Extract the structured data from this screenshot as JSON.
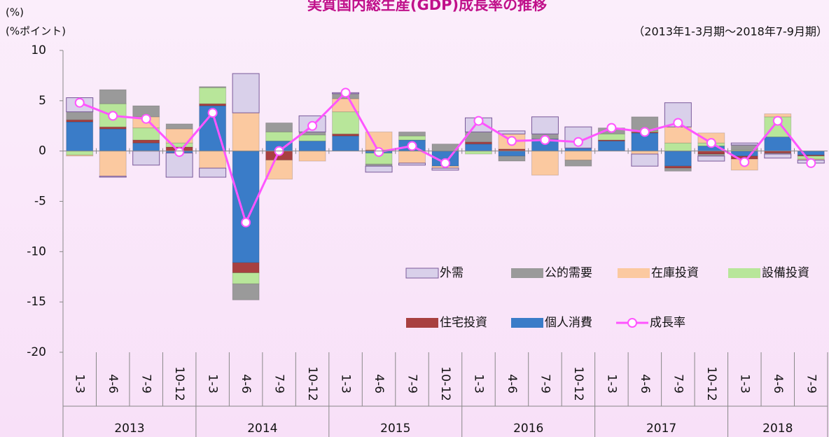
{
  "chart_data": {
    "type": "bar",
    "title": "実質国内総生産(GDP)成長率の推移",
    "subtitle": "（2013年1-3月期～2018年7-9月期）",
    "y_label_top": "(%)",
    "y_label": "(%ポイント)",
    "categories": [
      "1-3",
      "4-6",
      "7-9",
      "10-12",
      "1-3",
      "4-6",
      "7-9",
      "10-12",
      "1-3",
      "4-6",
      "7-9",
      "10-12",
      "1-3",
      "4-6",
      "7-9",
      "10-12",
      "1-3",
      "4-6",
      "7-9",
      "10-12",
      "1-3",
      "4-6",
      "7-9"
    ],
    "years": [
      "2013",
      "2014",
      "2015",
      "2016",
      "2017",
      "2018"
    ],
    "ylim": [
      -20,
      10
    ],
    "yticks": [
      10,
      5,
      0,
      -5,
      -10,
      -15,
      -20
    ],
    "stacked": true,
    "series": [
      {
        "name": "外需",
        "color": "#d9d0ea",
        "values": [
          1.4,
          -0.1,
          -1.4,
          -2.4,
          -0.9,
          3.9,
          0.0,
          1.6,
          0.1,
          -0.6,
          -0.2,
          -0.2,
          1.4,
          0.3,
          1.7,
          2.1,
          0.0,
          -1.2,
          2.4,
          -0.5,
          0.2,
          -0.4,
          -0.3
        ]
      },
      {
        "name": "公的需要",
        "color": "#9a9a9a",
        "values": [
          0.8,
          1.4,
          1.1,
          0.5,
          0.1,
          -1.6,
          0.9,
          0.3,
          0.5,
          -0.2,
          0.4,
          0.7,
          1.0,
          -0.5,
          0.5,
          -0.6,
          0.6,
          1.4,
          -0.3,
          -0.2,
          0.5,
          -0.1,
          0.0
        ]
      },
      {
        "name": "在庫投資",
        "color": "#fbc9a0",
        "values": [
          -0.1,
          -2.5,
          1.1,
          1.4,
          -1.7,
          3.8,
          -1.9,
          -1.0,
          1.3,
          1.8,
          -1.2,
          -0.2,
          0.0,
          1.5,
          -2.4,
          -0.9,
          0.0,
          -0.3,
          1.6,
          1.0,
          -1.1,
          0.3,
          -0.1
        ]
      },
      {
        "name": "設備投資",
        "color": "#b8e69a",
        "values": [
          -0.4,
          2.3,
          1.2,
          0.4,
          1.6,
          -1.1,
          0.9,
          0.6,
          2.2,
          -1.1,
          0.4,
          0.0,
          -0.3,
          0.0,
          0.0,
          0.0,
          0.6,
          0.1,
          0.8,
          0.3,
          0.1,
          2.0,
          -0.3
        ]
      },
      {
        "name": "住宅投資",
        "color": "#a84040",
        "values": [
          0.2,
          0.2,
          0.3,
          0.4,
          0.2,
          -1.0,
          -0.9,
          0.0,
          0.2,
          0.1,
          0.0,
          0.0,
          0.2,
          0.2,
          0.0,
          0.0,
          0.1,
          0.1,
          -0.2,
          -0.3,
          -0.3,
          -0.2,
          -0.1
        ]
      },
      {
        "name": "個人消費",
        "color": "#3a7cc8",
        "values": [
          2.9,
          2.2,
          0.8,
          -0.2,
          4.5,
          -11.1,
          1.0,
          1.0,
          1.5,
          -0.2,
          1.1,
          -1.5,
          0.7,
          -0.5,
          1.2,
          0.3,
          1.0,
          1.8,
          -1.5,
          0.5,
          -0.5,
          1.4,
          -0.4
        ]
      },
      {
        "name": "成長率",
        "color": "#ff55ff",
        "line": true,
        "values": [
          4.8,
          3.5,
          3.2,
          -0.1,
          3.8,
          -7.1,
          0.0,
          2.5,
          5.8,
          -0.1,
          0.5,
          -1.2,
          3.0,
          1.0,
          1.1,
          0.9,
          2.3,
          1.9,
          2.8,
          0.8,
          -1.1,
          3.0,
          -1.2
        ]
      }
    ]
  }
}
